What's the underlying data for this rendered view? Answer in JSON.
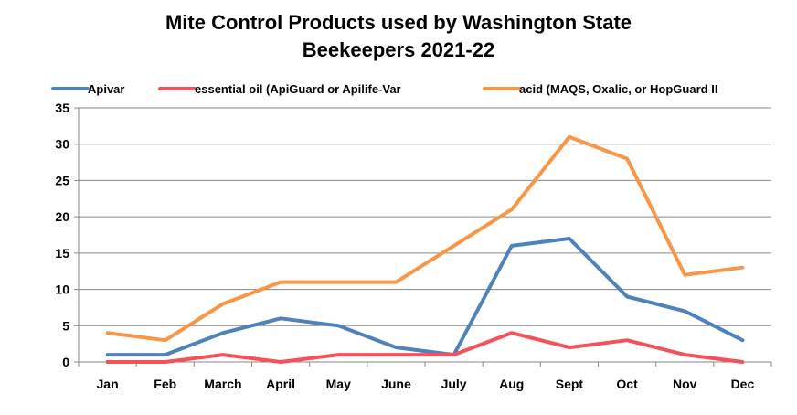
{
  "chart_data": {
    "type": "line",
    "title_lines": [
      "Mite Control Products used by Washington State",
      "Beekeepers 2021-22"
    ],
    "categories": [
      "Jan",
      "Feb",
      "March",
      "April",
      "May",
      "June",
      "July",
      "Aug",
      "Sept",
      "Oct",
      "Nov",
      "Dec"
    ],
    "series": [
      {
        "name": "Apivar",
        "color": "#4F81BD",
        "values": [
          1,
          1,
          4,
          6,
          5,
          2,
          1,
          16,
          17,
          9,
          7,
          3
        ]
      },
      {
        "name": "essential oil (ApiGuard or Apilife-Var",
        "color": "#F4525A",
        "values": [
          0,
          0,
          1,
          0,
          1,
          1,
          1,
          4,
          2,
          3,
          1,
          0
        ]
      },
      {
        "name": "acid (MAQS, Oxalic, or HopGuard II",
        "color": "#F79646",
        "values": [
          4,
          3,
          8,
          11,
          11,
          11,
          16,
          21,
          31,
          28,
          12,
          13
        ]
      }
    ],
    "ylim": [
      0,
      35
    ],
    "yticks": [
      0,
      5,
      10,
      15,
      20,
      25,
      30,
      35
    ],
    "grid": true,
    "legend_position": "top"
  }
}
